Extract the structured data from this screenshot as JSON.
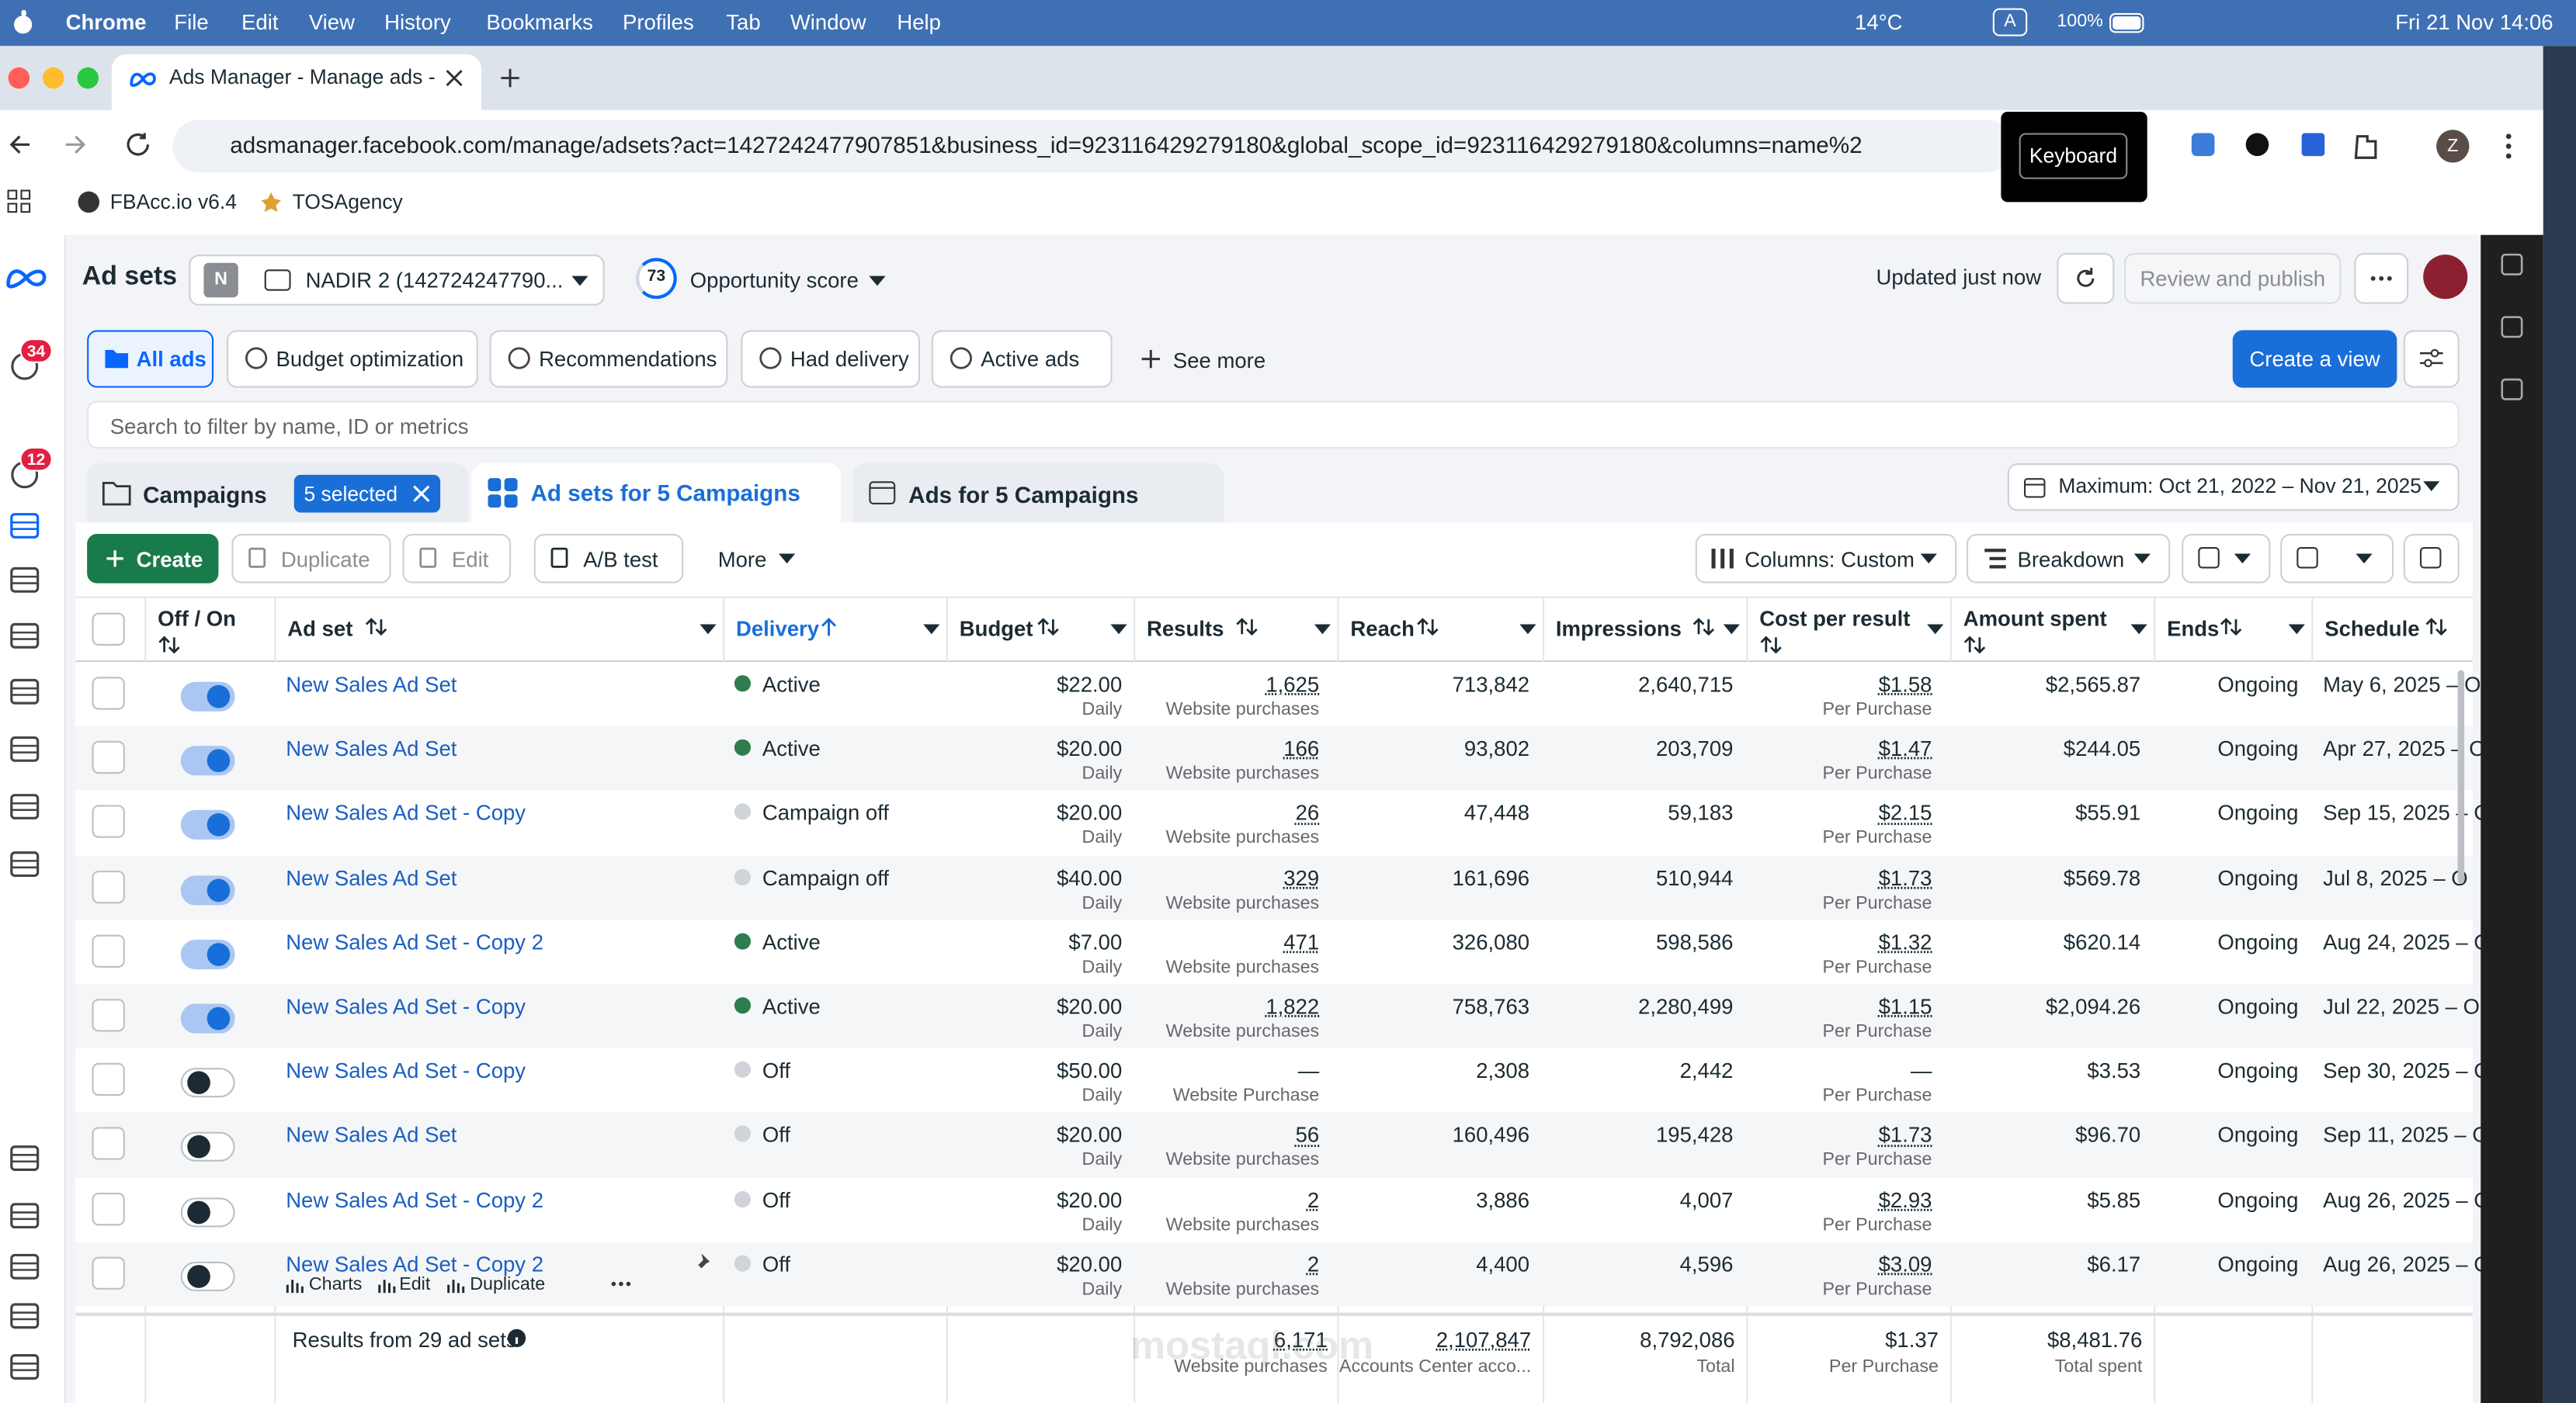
{
  "menubar": {
    "app": "Chrome",
    "items": [
      "File",
      "Edit",
      "View",
      "History",
      "Bookmarks",
      "Profiles",
      "Tab",
      "Window",
      "Help"
    ],
    "weather": "14°C",
    "input_source": "A",
    "battery": "100%",
    "datetime": "Fri 21 Nov  14:06"
  },
  "browser": {
    "tab_title": "Ads Manager - Manage ads -",
    "url": "adsmanager.facebook.com/manage/adsets?act=1427242477907851&business_id=923116429279180&global_scope_id=923116429279180&columns=name%2",
    "tooltip": "Keyboard",
    "profile": "Z",
    "bookmarks": [
      "FBAcc.io v6.4",
      "TOSAgency"
    ]
  },
  "nav": {
    "badges": [
      "34",
      "12"
    ]
  },
  "header": {
    "title": "Ad sets",
    "account_badge": "N",
    "account": "NADIR 2 (142724247790...",
    "opportunity_score": "73",
    "opportunity_label": "Opportunity score",
    "updated": "Updated just now",
    "review": "Review and publish"
  },
  "filters": {
    "chips": [
      "All ads",
      "Budget optimization",
      "Recommendations",
      "Had delivery",
      "Active ads"
    ],
    "see_more": "See more",
    "create_view": "Create a view"
  },
  "search_placeholder": "Search to filter by name, ID or metrics",
  "level_tabs": {
    "campaigns": "Campaigns",
    "selected": "5 selected",
    "adsets": "Ad sets for 5 Campaigns",
    "ads": "Ads for 5 Campaigns",
    "date_range": "Maximum: Oct 21, 2022 – Nov 21, 2025"
  },
  "toolbar": {
    "create": "Create",
    "duplicate": "Duplicate",
    "edit": "Edit",
    "ab_test": "A/B test",
    "more": "More",
    "columns": "Columns: Custom",
    "breakdown": "Breakdown"
  },
  "table": {
    "headers": [
      "Off / On",
      "Ad set",
      "Delivery",
      "Budget",
      "Results",
      "Reach",
      "Impressions",
      "Cost per result",
      "Amount spent",
      "Ends",
      "Schedule"
    ],
    "rows": [
      {
        "on": true,
        "name": "New Sales Ad Set",
        "delivery": "Active",
        "delivery_color": "#2e7d4f",
        "budget": "$22.00",
        "budget_type": "Daily",
        "results": "1,625",
        "results_type": "Website purchases",
        "reach": "713,842",
        "impressions": "2,640,715",
        "cpr": "$1.58",
        "cpr_type": "Per Purchase",
        "spent": "$2,565.87",
        "ends": "Ongoing",
        "schedule": "May 6, 2025 – O"
      },
      {
        "on": true,
        "name": "New Sales Ad Set",
        "delivery": "Active",
        "delivery_color": "#2e7d4f",
        "budget": "$20.00",
        "budget_type": "Daily",
        "results": "166",
        "results_type": "Website purchases",
        "reach": "93,802",
        "impressions": "203,709",
        "cpr": "$1.47",
        "cpr_type": "Per Purchase",
        "spent": "$244.05",
        "ends": "Ongoing",
        "schedule": "Apr 27, 2025 – O"
      },
      {
        "on": true,
        "name": "New Sales Ad Set - Copy",
        "delivery": "Campaign off",
        "delivery_color": "#d0d3d8",
        "budget": "$20.00",
        "budget_type": "Daily",
        "results": "26",
        "results_type": "Website purchases",
        "reach": "47,448",
        "impressions": "59,183",
        "cpr": "$2.15",
        "cpr_type": "Per Purchase",
        "spent": "$55.91",
        "ends": "Ongoing",
        "schedule": "Sep 15, 2025 – O"
      },
      {
        "on": true,
        "name": "New Sales Ad Set",
        "delivery": "Campaign off",
        "delivery_color": "#d0d3d8",
        "budget": "$40.00",
        "budget_type": "Daily",
        "results": "329",
        "results_type": "Website purchases",
        "reach": "161,696",
        "impressions": "510,944",
        "cpr": "$1.73",
        "cpr_type": "Per Purchase",
        "spent": "$569.78",
        "ends": "Ongoing",
        "schedule": "Jul 8, 2025 – O"
      },
      {
        "on": true,
        "name": "New Sales Ad Set - Copy 2",
        "delivery": "Active",
        "delivery_color": "#2e7d4f",
        "budget": "$7.00",
        "budget_type": "Daily",
        "results": "471",
        "results_type": "Website purchases",
        "reach": "326,080",
        "impressions": "598,586",
        "cpr": "$1.32",
        "cpr_type": "Per Purchase",
        "spent": "$620.14",
        "ends": "Ongoing",
        "schedule": "Aug 24, 2025 – O"
      },
      {
        "on": true,
        "name": "New Sales Ad Set - Copy",
        "delivery": "Active",
        "delivery_color": "#2e7d4f",
        "budget": "$20.00",
        "budget_type": "Daily",
        "results": "1,822",
        "results_type": "Website purchases",
        "reach": "758,763",
        "impressions": "2,280,499",
        "cpr": "$1.15",
        "cpr_type": "Per Purchase",
        "spent": "$2,094.26",
        "ends": "Ongoing",
        "schedule": "Jul 22, 2025 – O"
      },
      {
        "on": false,
        "name": "New Sales Ad Set - Copy",
        "delivery": "Off",
        "delivery_color": "#d0d3d8",
        "budget": "$50.00",
        "budget_type": "Daily",
        "results": "—",
        "results_type": "Website Purchase",
        "reach": "2,308",
        "impressions": "2,442",
        "cpr": "—",
        "cpr_type": "Per Purchase",
        "spent": "$3.53",
        "ends": "Ongoing",
        "schedule": "Sep 30, 2025 – O"
      },
      {
        "on": false,
        "name": "New Sales Ad Set",
        "delivery": "Off",
        "delivery_color": "#d0d3d8",
        "budget": "$20.00",
        "budget_type": "Daily",
        "results": "56",
        "results_type": "Website purchases",
        "reach": "160,496",
        "impressions": "195,428",
        "cpr": "$1.73",
        "cpr_type": "Per Purchase",
        "spent": "$96.70",
        "ends": "Ongoing",
        "schedule": "Sep 11, 2025 – O"
      },
      {
        "on": false,
        "name": "New Sales Ad Set - Copy 2",
        "delivery": "Off",
        "delivery_color": "#d0d3d8",
        "budget": "$20.00",
        "budget_type": "Daily",
        "results": "2",
        "results_type": "Website purchases",
        "reach": "3,886",
        "impressions": "4,007",
        "cpr": "$2.93",
        "cpr_type": "Per Purchase",
        "spent": "$5.85",
        "ends": "Ongoing",
        "schedule": "Aug 26, 2025 – O"
      },
      {
        "on": false,
        "name": "New Sales Ad Set - Copy 2",
        "delivery": "Off",
        "delivery_color": "#d0d3d8",
        "budget": "$20.00",
        "budget_type": "Daily",
        "results": "2",
        "results_type": "Website purchases",
        "reach": "4,400",
        "impressions": "4,596",
        "cpr": "$3.09",
        "cpr_type": "Per Purchase",
        "spent": "$6.17",
        "ends": "Ongoing",
        "schedule": "Aug 26, 2025 – O"
      }
    ],
    "row_actions": [
      "Charts",
      "Edit",
      "Duplicate"
    ],
    "totals": {
      "label": "Results from 29 ad sets",
      "results": "6,171",
      "results_type": "Website purchases",
      "reach": "2,107,847",
      "reach_type": "Accounts Center acco...",
      "impressions": "8,792,086",
      "impressions_type": "Total",
      "cpr": "$1.37",
      "cpr_type": "Per Purchase",
      "spent": "$8,481.76",
      "spent_type": "Total spent"
    }
  },
  "watermark": "mostaql.com"
}
